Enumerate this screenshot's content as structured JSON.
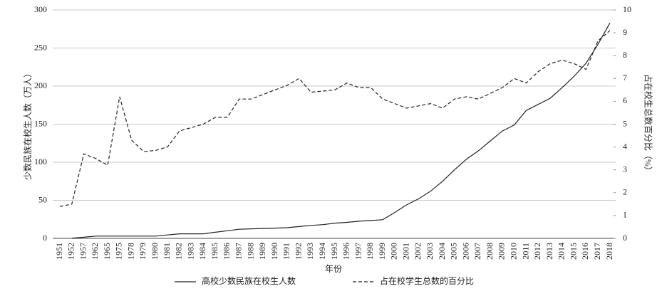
{
  "chart_data": {
    "type": "line",
    "y_label": "少数民族在校生人数（万人）",
    "y2_label": "占在校生总数百分比（%）",
    "x_label": "年份",
    "categories": [
      "1951",
      "1952",
      "1957",
      "1962",
      "1965",
      "1975",
      "1978",
      "1979",
      "1980",
      "1981",
      "1982",
      "1983",
      "1984",
      "1985",
      "1986",
      "1987",
      "1988",
      "1989",
      "1990",
      "1991",
      "1992",
      "1993",
      "1994",
      "1995",
      "1996",
      "1997",
      "1998",
      "1999",
      "2000",
      "2001",
      "2002",
      "2003",
      "2004",
      "2005",
      "2006",
      "2007",
      "2008",
      "2009",
      "2010",
      "2011",
      "2012",
      "2013",
      "2014",
      "2015",
      "2016",
      "2017",
      "2018"
    ],
    "series": [
      {
        "name": "高校少数民族在校生人数",
        "color": "#222222",
        "dash": false,
        "values": [
          null,
          0.3,
          1.5,
          3,
          3,
          3,
          3,
          3,
          3,
          4.5,
          6,
          6,
          6,
          8,
          10,
          12,
          12.5,
          13,
          13.5,
          14,
          15.5,
          17,
          18,
          20,
          21,
          22.5,
          23.5,
          24.5,
          34,
          44,
          52,
          62,
          75,
          90,
          104,
          115,
          128,
          141,
          149,
          168,
          176,
          184,
          198,
          213,
          230,
          255,
          283
        ]
      },
      {
        "name": "占在校学生总数的百分比",
        "color": "#222222",
        "dash": true,
        "axis": "y2",
        "values": [
          1.4,
          1.5,
          3.7,
          3.5,
          3.2,
          6.2,
          4.3,
          3.8,
          3.85,
          4.0,
          4.7,
          4.85,
          5.0,
          5.3,
          5.3,
          6.1,
          6.1,
          6.3,
          6.5,
          6.7,
          7.0,
          6.4,
          6.45,
          6.5,
          6.8,
          6.6,
          6.6,
          6.1,
          5.9,
          5.7,
          5.8,
          5.9,
          5.7,
          6.1,
          6.2,
          6.1,
          6.35,
          6.6,
          7.0,
          6.8,
          7.3,
          7.65,
          7.8,
          7.65,
          7.4,
          8.65,
          9.1
        ]
      }
    ],
    "ylim": [
      0,
      300
    ],
    "yticks": [
      0,
      50,
      100,
      150,
      200,
      250,
      300
    ],
    "y2lim": [
      0,
      10
    ],
    "y2ticks": [
      0,
      1,
      2,
      3,
      4,
      5,
      6,
      7,
      8,
      9,
      10
    ],
    "grid": true,
    "legend": "bottom"
  }
}
